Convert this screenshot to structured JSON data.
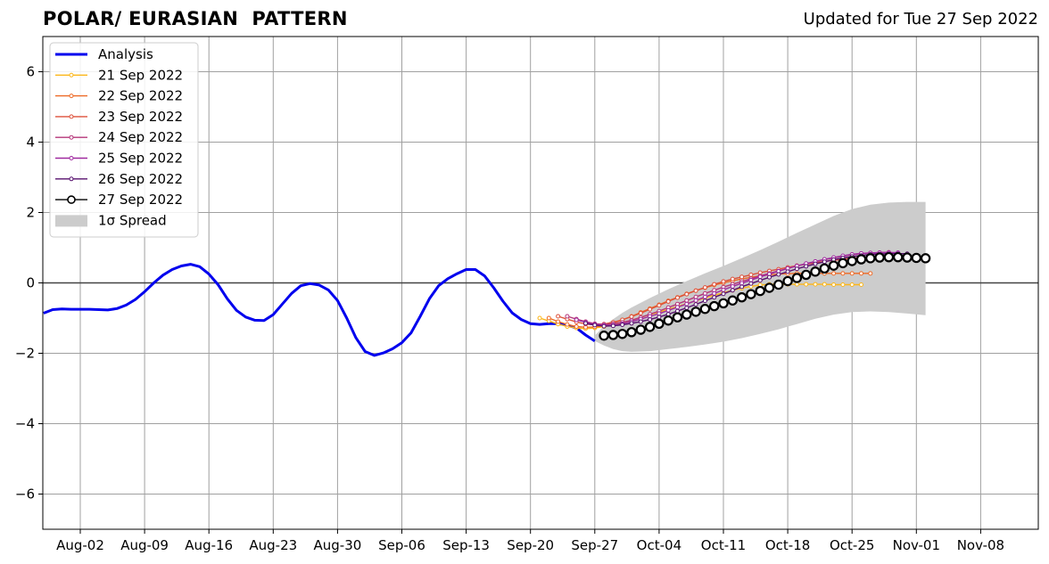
{
  "header": {
    "title": "POLAR/ EURASIAN  PATTERN",
    "updated": "Updated for Tue 27 Sep 2022"
  },
  "chart_data": {
    "type": "line",
    "title": "POLAR/ EURASIAN  PATTERN",
    "xlabel": "",
    "ylabel": "",
    "x_range_days": [
      -3,
      88
    ],
    "ylim": [
      -7,
      7
    ],
    "grid": true,
    "legend_position": "top-left",
    "x_ticks": [
      {
        "day": 0,
        "label": "Aug-02"
      },
      {
        "day": 7,
        "label": "Aug-09"
      },
      {
        "day": 14,
        "label": "Aug-16"
      },
      {
        "day": 21,
        "label": "Aug-23"
      },
      {
        "day": 28,
        "label": "Aug-30"
      },
      {
        "day": 35,
        "label": "Sep-06"
      },
      {
        "day": 42,
        "label": "Sep-13"
      },
      {
        "day": 49,
        "label": "Sep-20"
      },
      {
        "day": 56,
        "label": "Sep-27"
      },
      {
        "day": 63,
        "label": "Oct-04"
      },
      {
        "day": 70,
        "label": "Oct-11"
      },
      {
        "day": 77,
        "label": "Oct-18"
      },
      {
        "day": 84,
        "label": "Oct-25"
      },
      {
        "day": 91,
        "label": "Nov-01"
      },
      {
        "day": 98,
        "label": "Nov-08"
      }
    ],
    "y_ticks": [
      {
        "value": 6,
        "label": "6"
      },
      {
        "value": 4,
        "label": "4"
      },
      {
        "value": 2,
        "label": "2"
      },
      {
        "value": 0,
        "label": "0"
      },
      {
        "value": -2,
        "label": "−2"
      },
      {
        "value": -4,
        "label": "−4"
      },
      {
        "value": -6,
        "label": "−6"
      }
    ],
    "series": [
      {
        "name": "Analysis",
        "color": "#0000ee",
        "style": "analysis",
        "x": [
          -4,
          -3,
          -2,
          -1,
          0,
          1,
          2,
          3,
          4,
          5,
          6,
          7,
          8,
          9,
          10,
          11,
          12,
          13,
          14,
          15,
          16,
          17,
          18,
          19,
          20,
          21,
          22,
          23,
          24,
          25,
          26,
          27,
          28,
          29,
          30,
          31,
          32,
          33,
          34,
          35,
          36,
          37,
          38,
          39,
          40,
          41,
          42,
          43,
          44,
          45,
          46,
          47,
          48,
          49,
          50,
          51,
          52,
          53,
          54,
          55,
          56
        ],
        "y": [
          -0.86,
          -0.76,
          -0.74,
          -0.75,
          -0.75,
          -0.75,
          -0.76,
          -0.77,
          -0.73,
          -0.63,
          -0.47,
          -0.25,
          0.0,
          0.22,
          0.38,
          0.48,
          0.53,
          0.46,
          0.25,
          -0.05,
          -0.45,
          -0.78,
          -0.97,
          -1.06,
          -1.07,
          -0.9,
          -0.6,
          -0.3,
          -0.08,
          -0.02,
          -0.06,
          -0.2,
          -0.5,
          -1.0,
          -1.56,
          -1.95,
          -2.06,
          -1.99,
          -1.87,
          -1.7,
          -1.42,
          -0.95,
          -0.45,
          -0.08,
          0.12,
          0.26,
          0.38,
          0.38,
          0.2,
          -0.14,
          -0.52,
          -0.85,
          -1.04,
          -1.16,
          -1.18,
          -1.16,
          -1.16,
          -1.2,
          -1.28,
          -1.48,
          -1.65
        ]
      },
      {
        "name": "21 Sep 2022",
        "color": "#fbb61a",
        "style": "small",
        "x": [
          50,
          51,
          52,
          53,
          54,
          55,
          56,
          57,
          58,
          59,
          60,
          61,
          62,
          63,
          64,
          65,
          66,
          67,
          68,
          69,
          70,
          71,
          72,
          73,
          74,
          75,
          76,
          77,
          78,
          79,
          80,
          81,
          82,
          83,
          84,
          85
        ],
        "y": [
          -1.0,
          -1.08,
          -1.17,
          -1.24,
          -1.28,
          -1.3,
          -1.28,
          -1.24,
          -1.2,
          -1.14,
          -1.06,
          -0.98,
          -0.9,
          -0.83,
          -0.75,
          -0.67,
          -0.59,
          -0.51,
          -0.43,
          -0.35,
          -0.28,
          -0.21,
          -0.15,
          -0.1,
          -0.06,
          -0.04,
          -0.04,
          -0.04,
          -0.04,
          -0.04,
          -0.04,
          -0.04,
          -0.05,
          -0.05,
          -0.05,
          -0.05
        ]
      },
      {
        "name": "22 Sep 2022",
        "color": "#ed6925",
        "style": "small",
        "x": [
          51,
          52,
          53,
          54,
          55,
          56,
          57,
          58,
          59,
          60,
          61,
          62,
          63,
          64,
          65,
          66,
          67,
          68,
          69,
          70,
          71,
          72,
          73,
          74,
          75,
          76,
          77,
          78,
          79,
          80,
          81,
          82,
          83,
          84,
          85,
          86
        ],
        "y": [
          -1.0,
          -1.1,
          -1.18,
          -1.24,
          -1.26,
          -1.25,
          -1.21,
          -1.14,
          -1.05,
          -0.95,
          -0.84,
          -0.73,
          -0.62,
          -0.51,
          -0.41,
          -0.31,
          -0.22,
          -0.14,
          -0.06,
          0.0,
          0.06,
          0.11,
          0.16,
          0.2,
          0.23,
          0.25,
          0.26,
          0.27,
          0.27,
          0.27,
          0.27,
          0.27,
          0.27,
          0.27,
          0.27,
          0.27
        ]
      },
      {
        "name": "23 Sep 2022",
        "color": "#dd513a",
        "style": "small",
        "x": [
          52,
          53,
          54,
          55,
          56,
          57,
          58,
          59,
          60,
          61,
          62,
          63,
          64,
          65,
          66,
          67,
          68,
          69,
          70,
          71,
          72,
          73,
          74,
          75,
          76,
          77,
          78,
          79,
          80,
          81,
          82,
          83,
          84,
          85,
          86,
          87
        ],
        "y": [
          -0.95,
          -1.03,
          -1.11,
          -1.17,
          -1.19,
          -1.17,
          -1.12,
          -1.05,
          -0.96,
          -0.86,
          -0.75,
          -0.64,
          -0.53,
          -0.42,
          -0.32,
          -0.22,
          -0.13,
          -0.04,
          0.04,
          0.11,
          0.17,
          0.23,
          0.29,
          0.34,
          0.39,
          0.44,
          0.49,
          0.53,
          0.57,
          0.61,
          0.64,
          0.67,
          0.7,
          0.72,
          0.74,
          0.76
        ]
      },
      {
        "name": "24 Sep 2022",
        "color": "#b5367a",
        "style": "small",
        "x": [
          53,
          54,
          55,
          56,
          57,
          58,
          59,
          60,
          61,
          62,
          63,
          64,
          65,
          66,
          67,
          68,
          69,
          70,
          71,
          72,
          73,
          74,
          75,
          76,
          77,
          78,
          79,
          80,
          81,
          82,
          83,
          84,
          85,
          86,
          87,
          88
        ],
        "y": [
          -0.95,
          -1.03,
          -1.1,
          -1.16,
          -1.18,
          -1.16,
          -1.12,
          -1.06,
          -0.98,
          -0.89,
          -0.8,
          -0.7,
          -0.6,
          -0.5,
          -0.4,
          -0.3,
          -0.21,
          -0.12,
          -0.04,
          0.04,
          0.12,
          0.2,
          0.27,
          0.34,
          0.41,
          0.48,
          0.54,
          0.6,
          0.66,
          0.71,
          0.76,
          0.8,
          0.83,
          0.85,
          0.86,
          0.87
        ]
      },
      {
        "name": "25 Sep 2022",
        "color": "#9f2a9f",
        "style": "small",
        "x": [
          54,
          55,
          56,
          57,
          58,
          59,
          60,
          61,
          62,
          63,
          64,
          65,
          66,
          67,
          68,
          69,
          70,
          71,
          72,
          73,
          74,
          75,
          76,
          77,
          78,
          79,
          80,
          81,
          82,
          83,
          84,
          85,
          86,
          87,
          88,
          89
        ],
        "y": [
          -1.05,
          -1.12,
          -1.18,
          -1.21,
          -1.2,
          -1.16,
          -1.1,
          -1.03,
          -0.95,
          -0.87,
          -0.78,
          -0.69,
          -0.6,
          -0.5,
          -0.4,
          -0.3,
          -0.2,
          -0.1,
          -0.01,
          0.08,
          0.17,
          0.25,
          0.33,
          0.41,
          0.48,
          0.55,
          0.61,
          0.67,
          0.72,
          0.77,
          0.81,
          0.84,
          0.85,
          0.86,
          0.86,
          0.86
        ]
      },
      {
        "name": "26 Sep 2022",
        "color": "#57106e",
        "style": "small",
        "x": [
          55,
          56,
          57,
          58,
          59,
          60,
          61,
          62,
          63,
          64,
          65,
          66,
          67,
          68,
          69,
          70,
          71,
          72,
          73,
          74,
          75,
          76,
          77,
          78,
          79,
          80,
          81,
          82,
          83,
          84,
          85,
          86,
          87,
          88,
          89,
          90
        ],
        "y": [
          -1.15,
          -1.2,
          -1.23,
          -1.22,
          -1.19,
          -1.15,
          -1.1,
          -1.04,
          -0.97,
          -0.89,
          -0.8,
          -0.71,
          -0.61,
          -0.51,
          -0.41,
          -0.31,
          -0.21,
          -0.11,
          -0.02,
          0.07,
          0.16,
          0.24,
          0.32,
          0.4,
          0.47,
          0.54,
          0.6,
          0.66,
          0.71,
          0.75,
          0.78,
          0.81,
          0.82,
          0.83,
          0.83,
          0.83
        ]
      },
      {
        "name": "27 Sep 2022",
        "color": "#000000",
        "style": "current",
        "x": [
          57,
          58,
          59,
          60,
          61,
          62,
          63,
          64,
          65,
          66,
          67,
          68,
          69,
          70,
          71,
          72,
          73,
          74,
          75,
          76,
          77,
          78,
          79,
          80,
          81,
          82,
          83,
          84,
          85,
          86,
          87,
          88,
          89,
          90,
          91,
          92
        ],
        "y": [
          -1.5,
          -1.48,
          -1.45,
          -1.4,
          -1.33,
          -1.25,
          -1.16,
          -1.07,
          -0.98,
          -0.9,
          -0.82,
          -0.74,
          -0.66,
          -0.58,
          -0.5,
          -0.41,
          -0.32,
          -0.23,
          -0.14,
          -0.05,
          0.05,
          0.14,
          0.23,
          0.32,
          0.41,
          0.49,
          0.56,
          0.62,
          0.67,
          0.7,
          0.72,
          0.73,
          0.73,
          0.72,
          0.71,
          0.7
        ]
      }
    ],
    "spread": {
      "name": "1σ Spread",
      "color": "#cccccc",
      "x": [
        56,
        57,
        58,
        59,
        60,
        62,
        64,
        66,
        68,
        70,
        72,
        74,
        76,
        78,
        80,
        82,
        84,
        86,
        88,
        90,
        92
      ],
      "upper": [
        -1.5,
        -1.22,
        -1.03,
        -0.85,
        -0.7,
        -0.43,
        -0.18,
        0.05,
        0.27,
        0.48,
        0.7,
        0.93,
        1.17,
        1.42,
        1.66,
        1.9,
        2.1,
        2.22,
        2.28,
        2.3,
        2.3
      ],
      "lower": [
        -1.65,
        -1.78,
        -1.88,
        -1.94,
        -1.96,
        -1.94,
        -1.88,
        -1.82,
        -1.75,
        -1.67,
        -1.57,
        -1.45,
        -1.32,
        -1.17,
        -1.02,
        -0.9,
        -0.83,
        -0.81,
        -0.83,
        -0.87,
        -0.92
      ]
    }
  }
}
